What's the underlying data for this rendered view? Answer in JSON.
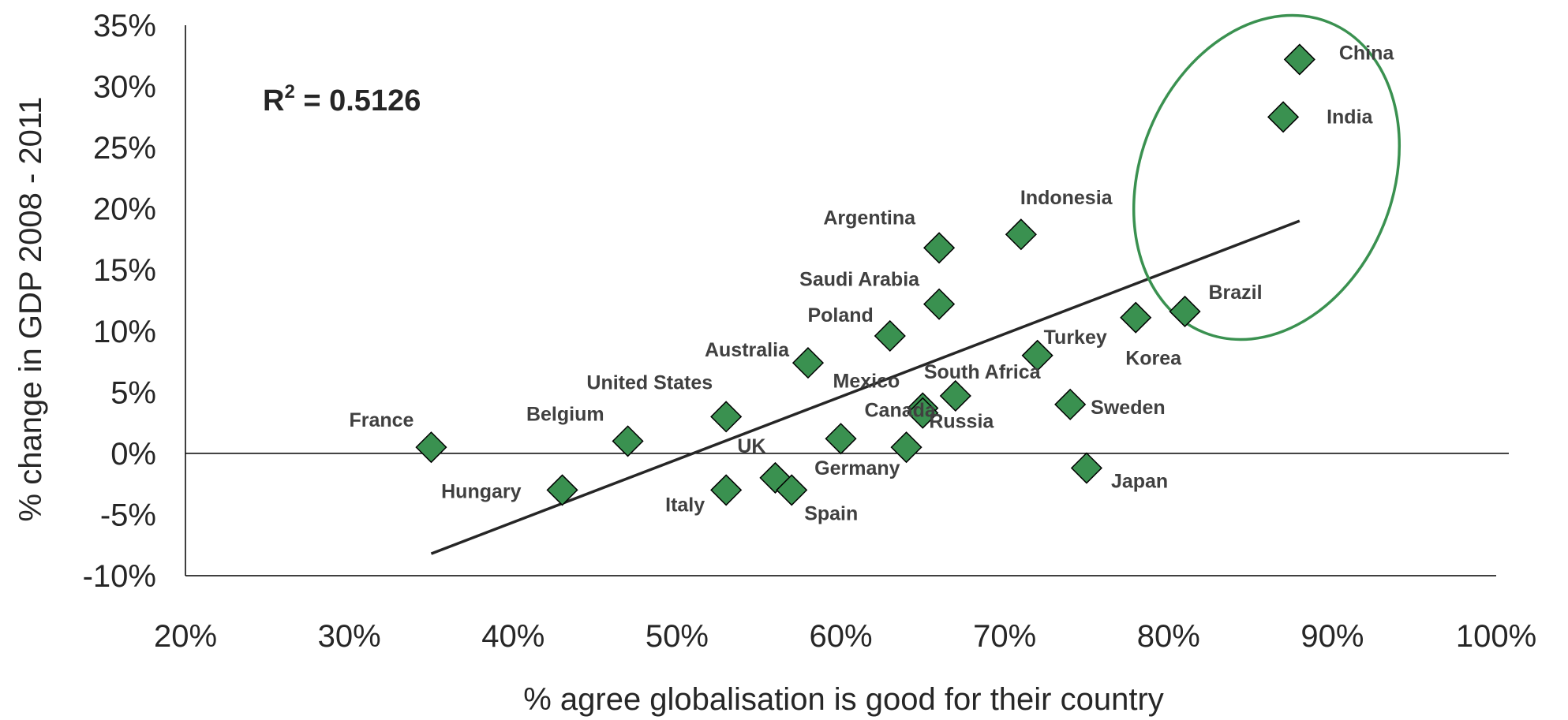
{
  "chart_data": {
    "type": "scatter",
    "title": "",
    "xlabel": "% agree globalisation is good for their country",
    "ylabel": "% change in GDP 2008 - 2011",
    "xlim": [
      20,
      100
    ],
    "ylim": [
      -10,
      35
    ],
    "x_ticks": [
      "20%",
      "30%",
      "40%",
      "50%",
      "60%",
      "70%",
      "80%",
      "90%",
      "100%"
    ],
    "y_ticks": [
      "35%",
      "30%",
      "25%",
      "20%",
      "15%",
      "10%",
      "5%",
      "0%",
      "-5%",
      "-10%"
    ],
    "grid": false,
    "legend": "none",
    "annotation": {
      "r_squared_label": "R",
      "r_squared_sup": "2",
      "r_squared_value": " = 0.5126"
    },
    "marker_color": "#3a9150",
    "highlight_color": "#3a9150",
    "highlighted_points": [
      "China",
      "India",
      "Brazil"
    ],
    "trendline": {
      "x_start": 35,
      "y_start": -8.2,
      "x_end": 88,
      "y_end": 19
    },
    "points": [
      {
        "label": "France",
        "x": 35,
        "y": 0.5
      },
      {
        "label": "Hungary",
        "x": 43,
        "y": -3
      },
      {
        "label": "Belgium",
        "x": 47,
        "y": 1
      },
      {
        "label": "United States",
        "x": 53,
        "y": 3
      },
      {
        "label": "Italy",
        "x": 53,
        "y": -3
      },
      {
        "label": "UK",
        "x": 56,
        "y": -2
      },
      {
        "label": "Spain",
        "x": 57,
        "y": -3
      },
      {
        "label": "Australia",
        "x": 58,
        "y": 7.4
      },
      {
        "label": "Canada",
        "x": 60,
        "y": 1.2
      },
      {
        "label": "Poland",
        "x": 63,
        "y": 9.6
      },
      {
        "label": "Germany",
        "x": 64,
        "y": 0.5
      },
      {
        "label": "Mexico",
        "x": 65,
        "y": 3.7
      },
      {
        "label": "South Africa",
        "x": 67,
        "y": 4.7
      },
      {
        "label": "Argentina",
        "x": 66,
        "y": 16.8
      },
      {
        "label": "Saudi Arabia",
        "x": 66,
        "y": 12.2
      },
      {
        "label": "Indonesia",
        "x": 71,
        "y": 17.9
      },
      {
        "label": "Turkey",
        "x": 72,
        "y": 8
      },
      {
        "label": "Sweden",
        "x": 74,
        "y": 4
      },
      {
        "label": "Japan",
        "x": 75,
        "y": -1.2
      },
      {
        "label": "Korea",
        "x": 78,
        "y": 11.1
      },
      {
        "label": "Brazil",
        "x": 81,
        "y": 11.6
      },
      {
        "label": "India",
        "x": 87,
        "y": 27.5
      },
      {
        "label": "China",
        "x": 88,
        "y": 32.2
      },
      {
        "label": "Russia",
        "x": 65,
        "y": 3.3
      }
    ]
  }
}
